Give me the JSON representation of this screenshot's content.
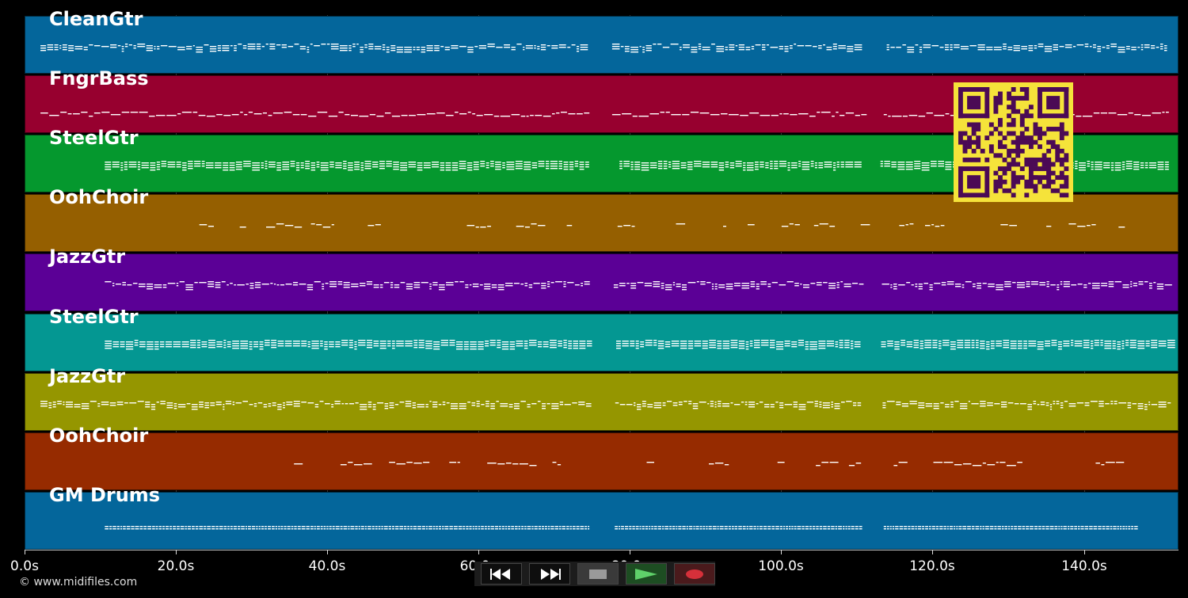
{
  "app": {
    "copyright": "© www.midifiles.com"
  },
  "timeline": {
    "tick_labels": [
      "0.0s",
      "20.0s",
      "40.0s",
      "60.0s",
      "80.0s",
      "100.0s",
      "120.0s",
      "140.0s"
    ],
    "tick_values_seconds": [
      0,
      20,
      40,
      60,
      80,
      100,
      120,
      140
    ],
    "range_seconds": [
      0,
      152.5
    ]
  },
  "tracks": [
    {
      "name": "CleanGtr",
      "color": "#04669b",
      "note_span_seconds": [
        2,
        151
      ],
      "pattern": "lead"
    },
    {
      "name": "FngrBass",
      "color": "#97002f",
      "note_span_seconds": [
        2,
        151
      ],
      "pattern": "bass"
    },
    {
      "name": "SteelGtr",
      "color": "#05982e",
      "note_span_seconds": [
        10.5,
        151
      ],
      "pattern": "chords"
    },
    {
      "name": "OohChoir",
      "color": "#955f00",
      "note_span_seconds": [
        23,
        147
      ],
      "pattern": "sparse"
    },
    {
      "name": "JazzGtr",
      "color": "#5b0096",
      "note_span_seconds": [
        10.5,
        151
      ],
      "pattern": "lead"
    },
    {
      "name": "SteelGtr",
      "color": "#049792",
      "note_span_seconds": [
        10.5,
        151
      ],
      "pattern": "chords"
    },
    {
      "name": "JazzGtr",
      "color": "#959600",
      "note_span_seconds": [
        2,
        151
      ],
      "pattern": "lead"
    },
    {
      "name": "OohChoir",
      "color": "#962b00",
      "note_span_seconds": [
        35.5,
        147
      ],
      "pattern": "sparse"
    },
    {
      "name": "GM Drums",
      "color": "#04669b",
      "note_span_seconds": [
        10.5,
        147
      ],
      "pattern": "drums"
    }
  ],
  "transport": {
    "buttons": [
      {
        "name": "rewind-button",
        "icon": "rewind-icon",
        "icon_color": "#ffffff"
      },
      {
        "name": "fast-forward-button",
        "icon": "fast-forward-icon",
        "icon_color": "#ffffff"
      },
      {
        "name": "stop-button",
        "icon": "stop-icon",
        "icon_color": "#9a9a9a"
      },
      {
        "name": "play-button",
        "icon": "play-icon",
        "icon_color": "#5fd16a"
      },
      {
        "name": "record-button",
        "icon": "record-icon",
        "icon_color": "#d6303a"
      }
    ]
  },
  "overlay": {
    "qr_code": {
      "fg": "#4b0a55",
      "bg": "#f5e33a"
    }
  }
}
